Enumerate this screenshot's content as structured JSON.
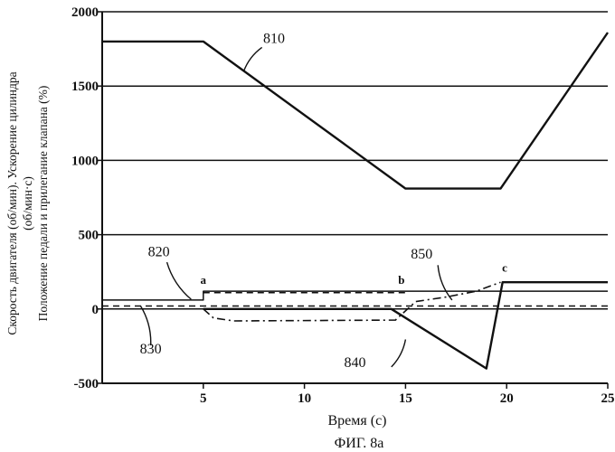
{
  "chart_data": {
    "type": "line",
    "caption": "ФИГ. 8а",
    "xlabel": "Время (с)",
    "ylabel_lines": [
      "Скорость двигателя (об/мин). Ускорение цилиндра",
      "(об/мин·с)",
      "Положение педали и прилегание клапана (%)"
    ],
    "xlim": [
      0,
      25
    ],
    "ylim": [
      -500,
      2000
    ],
    "grid": "horizontal",
    "x_ticks": [
      5,
      10,
      15,
      20,
      25
    ],
    "x_tick_labels": [
      "5",
      "10",
      "15",
      "20",
      "25"
    ],
    "y_ticks": [
      -500,
      0,
      500,
      1000,
      1500,
      2000
    ],
    "y_tick_labels": [
      "-500",
      "0",
      "500",
      "1000",
      "1500",
      "2000"
    ],
    "series": [
      {
        "name": "810",
        "style": "solid-thick",
        "points": [
          [
            0,
            1800
          ],
          [
            5,
            1800
          ],
          [
            15,
            810
          ],
          [
            19.7,
            810
          ],
          [
            25,
            1860
          ]
        ]
      },
      {
        "name": "820",
        "style": "solid",
        "points": [
          [
            0,
            60
          ],
          [
            5,
            60
          ],
          [
            5,
            120
          ],
          [
            15,
            120
          ],
          [
            15,
            120
          ],
          [
            25,
            120
          ]
        ]
      },
      {
        "name": "830",
        "style": "dashed",
        "points": [
          [
            0,
            20
          ],
          [
            25,
            20
          ]
        ]
      },
      {
        "name": "840",
        "style": "solid-thick",
        "points": [
          [
            5,
            0
          ],
          [
            14.3,
            0
          ],
          [
            19,
            -400
          ],
          [
            19.8,
            180
          ],
          [
            25,
            180
          ]
        ]
      },
      {
        "name": "850",
        "style": "dashdot",
        "points": [
          [
            5,
            0
          ],
          [
            5.5,
            -60
          ],
          [
            6.5,
            -80
          ],
          [
            14.5,
            -75
          ],
          [
            15.5,
            50
          ],
          [
            17,
            80
          ],
          [
            18.5,
            120
          ],
          [
            19.7,
            180
          ]
        ]
      },
      {
        "name": "820-dashed",
        "style": "dashed",
        "points": [
          [
            5,
            110
          ],
          [
            15,
            110
          ]
        ]
      }
    ],
    "reference_labels": [
      {
        "text": "810",
        "x": 8.5,
        "y": 1790
      },
      {
        "text": "820",
        "x": 2.8,
        "y": 355
      },
      {
        "text": "830",
        "x": 2.4,
        "y": -300
      },
      {
        "text": "840",
        "x": 12.5,
        "y": -390
      },
      {
        "text": "850",
        "x": 15.8,
        "y": 340
      }
    ],
    "leaders": [
      {
        "from": [
          7.0,
          1600
        ],
        "to": [
          7.9,
          1760
        ]
      },
      {
        "from": [
          4.4,
          65
        ],
        "to": [
          3.2,
          315
        ]
      },
      {
        "from": [
          1.9,
          20
        ],
        "to": [
          2.4,
          -245
        ]
      },
      {
        "from": [
          15.0,
          -205
        ],
        "to": [
          14.3,
          -390
        ]
      },
      {
        "from": [
          17.3,
          60
        ],
        "to": [
          16.6,
          295
        ]
      }
    ],
    "markers": [
      {
        "text": "a",
        "x": 5.0,
        "y": 170
      },
      {
        "text": "b",
        "x": 14.8,
        "y": 170
      },
      {
        "text": "c",
        "x": 19.9,
        "y": 250
      }
    ]
  }
}
